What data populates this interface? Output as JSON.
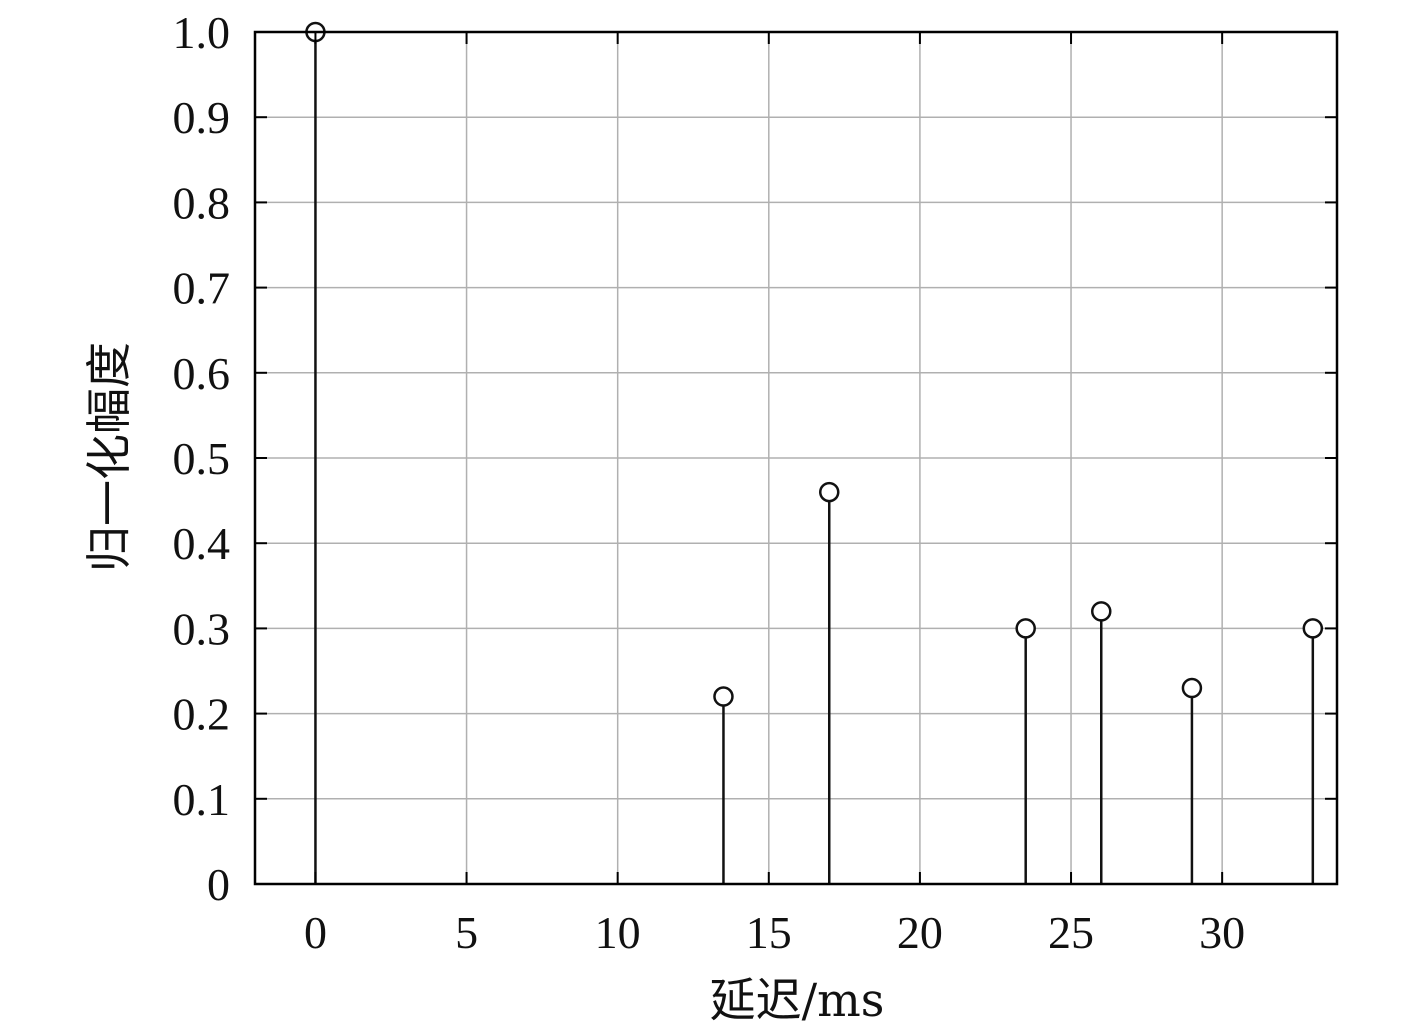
{
  "chart_data": {
    "type": "stem",
    "xlabel": "延迟/ms",
    "ylabel": "归一化幅度",
    "xlim": [
      -2,
      33.8
    ],
    "ylim": [
      0,
      1.0
    ],
    "xticks": [
      0,
      5,
      10,
      15,
      20,
      25,
      30
    ],
    "yticks": [
      0,
      0.1,
      0.2,
      0.3,
      0.4,
      0.5,
      0.6,
      0.7,
      0.8,
      0.9,
      1.0
    ],
    "ytick_labels": [
      "0",
      "0.1",
      "0.2",
      "0.3",
      "0.4",
      "0.5",
      "0.6",
      "0.7",
      "0.8",
      "0.9",
      "1.0"
    ],
    "grid": true,
    "marker": "open-circle",
    "x": [
      0,
      13.5,
      17,
      23.5,
      26,
      29,
      33
    ],
    "y": [
      1.0,
      0.22,
      0.46,
      0.3,
      0.32,
      0.23,
      0.3
    ],
    "colors": {
      "stem": "#111111",
      "grid": "#b0b0b0",
      "axes": "#000000"
    }
  }
}
